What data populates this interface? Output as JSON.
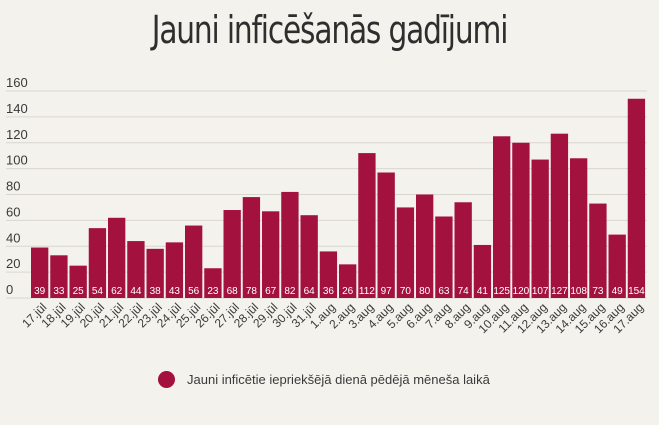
{
  "colors": {
    "bar": "#a3113f",
    "grid": "#d9d6cf",
    "background": "#f4f2ec"
  },
  "chart_data": {
    "type": "bar",
    "title": "Jauni inficēšanās gadījumi",
    "xlabel": "",
    "ylabel": "",
    "ylim": [
      0,
      160
    ],
    "yticks": [
      0,
      20,
      40,
      60,
      80,
      100,
      120,
      140,
      160
    ],
    "grid": true,
    "legend_position": "bottom",
    "categories": [
      "17.jūl",
      "18.jūl",
      "19.jūl",
      "20.jūl",
      "21.jūl",
      "22.jūl",
      "23.jūl",
      "24.jūl",
      "25.jūl",
      "26.jūl",
      "27.jūl",
      "28.jūl",
      "29.jūl",
      "30.jūl",
      "31.jūl",
      "1.aug",
      "2.aug",
      "3.aug",
      "4.aug",
      "5.aug",
      "6.aug",
      "7.aug",
      "8.aug",
      "9.aug",
      "10.aug",
      "11.aug",
      "12.aug",
      "13.aug",
      "14.aug",
      "15.aug",
      "16.aug",
      "17.aug"
    ],
    "series": [
      {
        "name": "Jauni inficētie iepriekšējā dienā pēdējā mēneša laikā",
        "values": [
          39,
          33,
          25,
          54,
          62,
          44,
          38,
          43,
          56,
          23,
          68,
          78,
          67,
          82,
          64,
          36,
          26,
          112,
          97,
          70,
          80,
          63,
          74,
          41,
          125,
          120,
          107,
          127,
          108,
          73,
          49,
          154
        ]
      }
    ]
  }
}
